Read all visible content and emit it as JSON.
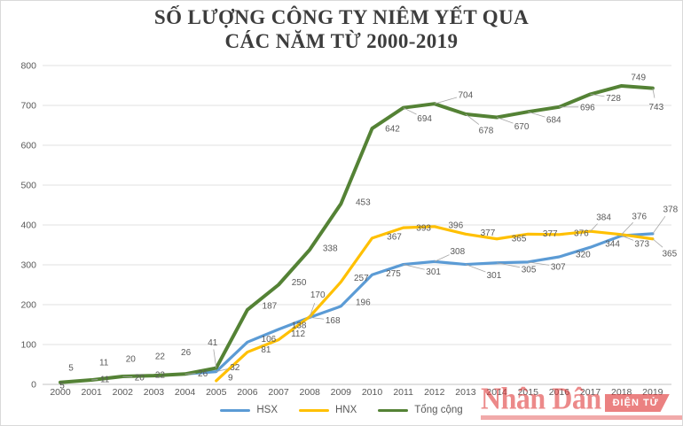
{
  "title": {
    "line1": "SỐ LƯỢNG CÔNG TY NIÊM YẾT QUA",
    "line2": "CÁC NĂM TỪ 2000-2019"
  },
  "chart_data": {
    "type": "line",
    "title": "SỐ LƯỢNG CÔNG TY NIÊM YẾT QUA CÁC NĂM TỪ 2000-2019",
    "categories": [
      "2000",
      "2001",
      "2002",
      "2003",
      "2004",
      "2005",
      "2006",
      "2007",
      "2008",
      "2009",
      "2010",
      "2011",
      "2012",
      "2013",
      "2014",
      "2015",
      "2016",
      "2017",
      "2018",
      "2019"
    ],
    "series": [
      {
        "name": "HSX",
        "color": "#5B9BD5",
        "values": [
          5,
          11,
          20,
          22,
          26,
          32,
          106,
          138,
          168,
          196,
          275,
          301,
          308,
          301,
          305,
          307,
          320,
          344,
          373,
          378
        ]
      },
      {
        "name": "HNX",
        "color": "#FFC000",
        "values": [
          null,
          null,
          null,
          null,
          null,
          9,
          81,
          112,
          170,
          257,
          367,
          393,
          396,
          377,
          365,
          377,
          376,
          384,
          376,
          365
        ]
      },
      {
        "name": "Tổng cộng",
        "color": "#548235",
        "values": [
          5,
          11,
          20,
          22,
          26,
          41,
          187,
          250,
          338,
          453,
          642,
          694,
          704,
          678,
          670,
          684,
          696,
          728,
          749,
          743
        ]
      }
    ],
    "xlabel": "",
    "ylabel": "",
    "ylim": [
      0,
      800
    ],
    "yticks": [
      0,
      100,
      200,
      300,
      400,
      500,
      600,
      700,
      800
    ],
    "grid": true,
    "legend_position": "bottom",
    "data_labels": true,
    "label_color": "#595959"
  },
  "watermark": {
    "title": "Nhân Dân",
    "badge": "ĐIỆN TỬ",
    "color": "#DE3434"
  }
}
